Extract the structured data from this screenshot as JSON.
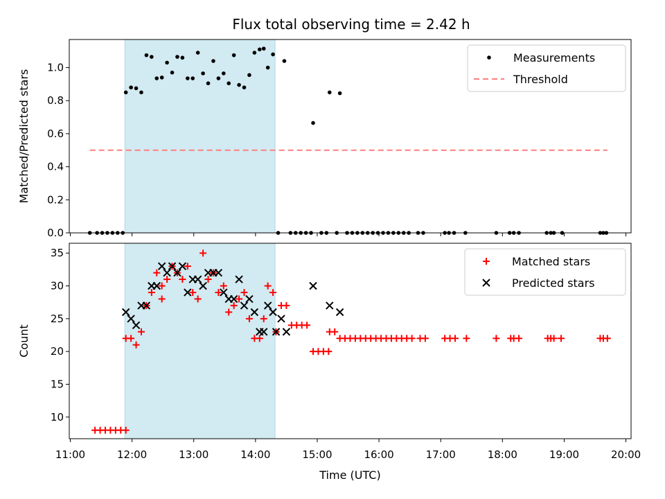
{
  "title": "Flux total observing time = 2.42 h",
  "colors": {
    "shade": "#add8e6",
    "threshold": "#ff7f7f",
    "matched": "#ff0000",
    "predicted": "#000000",
    "measurement": "#000000"
  },
  "chart_data": [
    {
      "type": "scatter",
      "panel": "top",
      "ylabel": "Matched/Predicted stars",
      "ylim": [
        0,
        1.17
      ],
      "xlim": [
        "10:59",
        "20:05"
      ],
      "y_ticks": [
        "0.0",
        "0.2",
        "0.4",
        "0.6",
        "0.8",
        "1.0"
      ],
      "shaded_interval": [
        "11:53",
        "14:19"
      ],
      "legend": {
        "placement": "top-right",
        "entries": [
          "Measurements",
          "Threshold"
        ]
      },
      "threshold": {
        "name": "Threshold",
        "y": 0.5,
        "x_range": [
          "11:19",
          "19:42"
        ]
      },
      "series": [
        {
          "name": "Measurements",
          "points": [
            [
              "11:19",
              0
            ],
            [
              "11:26",
              0
            ],
            [
              "11:31",
              0
            ],
            [
              "11:36",
              0
            ],
            [
              "11:41",
              0
            ],
            [
              "11:46",
              0
            ],
            [
              "11:51",
              0
            ],
            [
              "11:54",
              0.85
            ],
            [
              "11:59",
              0.88
            ],
            [
              "12:04",
              0.875
            ],
            [
              "12:09",
              0.85
            ],
            [
              "12:14",
              1.075
            ],
            [
              "12:19",
              1.065
            ],
            [
              "12:24",
              0.935
            ],
            [
              "12:29",
              0.94
            ],
            [
              "12:34",
              1.03
            ],
            [
              "12:39",
              0.97
            ],
            [
              "12:44",
              1.065
            ],
            [
              "12:49",
              1.06
            ],
            [
              "12:54",
              0.935
            ],
            [
              "12:59",
              0.935
            ],
            [
              "13:04",
              1.09
            ],
            [
              "13:09",
              0.965
            ],
            [
              "13:14",
              0.905
            ],
            [
              "13:19",
              1.04
            ],
            [
              "13:24",
              0.935
            ],
            [
              "13:29",
              0.965
            ],
            [
              "13:34",
              0.905
            ],
            [
              "13:39",
              1.075
            ],
            [
              "13:44",
              0.895
            ],
            [
              "13:49",
              0.88
            ],
            [
              "13:54",
              0.955
            ],
            [
              "13:59",
              1.09
            ],
            [
              "14:04",
              1.11
            ],
            [
              "14:08",
              1.115
            ],
            [
              "14:12",
              1.0
            ],
            [
              "14:17",
              1.08
            ],
            [
              "14:28",
              1.04
            ],
            [
              "14:56",
              0.665
            ],
            [
              "15:12",
              0.85
            ],
            [
              "15:22",
              0.845
            ],
            [
              "14:22",
              0
            ],
            [
              "14:34",
              0
            ],
            [
              "14:39",
              0
            ],
            [
              "14:44",
              0
            ],
            [
              "14:49",
              0
            ],
            [
              "14:54",
              0
            ],
            [
              "15:04",
              0
            ],
            [
              "15:09",
              0
            ],
            [
              "15:19",
              0
            ],
            [
              "15:29",
              0
            ],
            [
              "15:34",
              0
            ],
            [
              "15:39",
              0
            ],
            [
              "15:44",
              0
            ],
            [
              "15:49",
              0
            ],
            [
              "15:54",
              0
            ],
            [
              "15:59",
              0
            ],
            [
              "16:04",
              0
            ],
            [
              "16:09",
              0
            ],
            [
              "16:14",
              0
            ],
            [
              "16:19",
              0
            ],
            [
              "16:24",
              0
            ],
            [
              "16:29",
              0
            ],
            [
              "16:38",
              0
            ],
            [
              "16:43",
              0
            ],
            [
              "17:04",
              0
            ],
            [
              "17:08",
              0
            ],
            [
              "17:13",
              0
            ],
            [
              "17:24",
              0
            ],
            [
              "17:54",
              0
            ],
            [
              "18:07",
              0
            ],
            [
              "18:11",
              0
            ],
            [
              "18:16",
              0
            ],
            [
              "18:43",
              0
            ],
            [
              "18:47",
              0
            ],
            [
              "18:50",
              0
            ],
            [
              "18:58",
              0
            ],
            [
              "19:35",
              0
            ],
            [
              "19:38",
              0
            ],
            [
              "19:41",
              0
            ]
          ]
        }
      ]
    },
    {
      "type": "scatter",
      "panel": "bottom",
      "xlabel": "Time (UTC)",
      "ylabel": "Count",
      "ylim": [
        6.7,
        36.5
      ],
      "xlim": [
        "10:59",
        "20:05"
      ],
      "x_ticks": [
        "11:00",
        "12:00",
        "13:00",
        "14:00",
        "15:00",
        "16:00",
        "17:00",
        "18:00",
        "19:00",
        "20:00"
      ],
      "y_ticks": [
        "10",
        "15",
        "20",
        "25",
        "30",
        "35"
      ],
      "shaded_interval": [
        "11:53",
        "14:19"
      ],
      "legend": {
        "placement": "top-right",
        "entries": [
          "Matched stars",
          "Predicted stars"
        ]
      },
      "series": [
        {
          "name": "Matched stars",
          "marker": "plus",
          "points": [
            [
              "11:24",
              8
            ],
            [
              "11:29",
              8
            ],
            [
              "11:34",
              8
            ],
            [
              "11:39",
              8
            ],
            [
              "11:44",
              8
            ],
            [
              "11:49",
              8
            ],
            [
              "11:54",
              8
            ],
            [
              "11:54",
              22
            ],
            [
              "11:59",
              22
            ],
            [
              "12:04",
              21
            ],
            [
              "12:09",
              23
            ],
            [
              "12:14",
              27
            ],
            [
              "12:19",
              29
            ],
            [
              "12:24",
              32
            ],
            [
              "12:29",
              30
            ],
            [
              "12:29",
              28
            ],
            [
              "12:34",
              31
            ],
            [
              "12:39",
              33
            ],
            [
              "12:44",
              32
            ],
            [
              "12:49",
              31
            ],
            [
              "12:54",
              33
            ],
            [
              "12:59",
              29
            ],
            [
              "13:04",
              28
            ],
            [
              "13:09",
              35
            ],
            [
              "13:14",
              31
            ],
            [
              "13:19",
              32
            ],
            [
              "13:24",
              29
            ],
            [
              "13:29",
              30
            ],
            [
              "13:34",
              26
            ],
            [
              "13:39",
              27
            ],
            [
              "13:44",
              28
            ],
            [
              "13:49",
              29
            ],
            [
              "13:54",
              25
            ],
            [
              "13:59",
              22
            ],
            [
              "14:04",
              22
            ],
            [
              "14:08",
              25
            ],
            [
              "14:12",
              30
            ],
            [
              "14:17",
              29
            ],
            [
              "14:20",
              23
            ],
            [
              "14:25",
              27
            ],
            [
              "14:30",
              27
            ],
            [
              "14:35",
              24
            ],
            [
              "14:40",
              24
            ],
            [
              "14:45",
              24
            ],
            [
              "14:50",
              24
            ],
            [
              "14:56",
              20
            ],
            [
              "15:01",
              20
            ],
            [
              "15:06",
              20
            ],
            [
              "15:11",
              20
            ],
            [
              "15:12",
              23
            ],
            [
              "15:17",
              23
            ],
            [
              "15:22",
              22
            ],
            [
              "15:27",
              22
            ],
            [
              "15:32",
              22
            ],
            [
              "15:37",
              22
            ],
            [
              "15:42",
              22
            ],
            [
              "15:47",
              22
            ],
            [
              "15:52",
              22
            ],
            [
              "15:57",
              22
            ],
            [
              "16:02",
              22
            ],
            [
              "16:07",
              22
            ],
            [
              "16:12",
              22
            ],
            [
              "16:17",
              22
            ],
            [
              "16:22",
              22
            ],
            [
              "16:27",
              22
            ],
            [
              "16:32",
              22
            ],
            [
              "16:40",
              22
            ],
            [
              "16:45",
              22
            ],
            [
              "17:04",
              22
            ],
            [
              "17:09",
              22
            ],
            [
              "17:14",
              22
            ],
            [
              "17:25",
              22
            ],
            [
              "17:54",
              22
            ],
            [
              "18:08",
              22
            ],
            [
              "18:11",
              22
            ],
            [
              "18:16",
              22
            ],
            [
              "18:44",
              22
            ],
            [
              "18:47",
              22
            ],
            [
              "18:50",
              22
            ],
            [
              "18:57",
              22
            ],
            [
              "19:35",
              22
            ],
            [
              "19:38",
              22
            ],
            [
              "19:42",
              22
            ]
          ]
        },
        {
          "name": "Predicted stars",
          "marker": "x",
          "points": [
            [
              "11:54",
              26
            ],
            [
              "11:59",
              25
            ],
            [
              "12:04",
              24
            ],
            [
              "12:09",
              27
            ],
            [
              "12:14",
              27
            ],
            [
              "12:19",
              30
            ],
            [
              "12:24",
              30
            ],
            [
              "12:29",
              33
            ],
            [
              "12:34",
              32
            ],
            [
              "12:39",
              33
            ],
            [
              "12:44",
              32
            ],
            [
              "12:49",
              33
            ],
            [
              "12:54",
              29
            ],
            [
              "12:59",
              31
            ],
            [
              "13:04",
              31
            ],
            [
              "13:09",
              30
            ],
            [
              "13:14",
              32
            ],
            [
              "13:19",
              32
            ],
            [
              "13:24",
              32
            ],
            [
              "13:29",
              29
            ],
            [
              "13:34",
              28
            ],
            [
              "13:39",
              28
            ],
            [
              "13:44",
              31
            ],
            [
              "13:49",
              27
            ],
            [
              "13:54",
              28
            ],
            [
              "13:59",
              26
            ],
            [
              "14:04",
              23
            ],
            [
              "14:08",
              23
            ],
            [
              "14:12",
              27
            ],
            [
              "14:17",
              26
            ],
            [
              "14:20",
              23
            ],
            [
              "14:25",
              25
            ],
            [
              "14:30",
              23
            ],
            [
              "14:56",
              30
            ],
            [
              "15:12",
              27
            ],
            [
              "15:22",
              26
            ]
          ]
        }
      ]
    }
  ]
}
